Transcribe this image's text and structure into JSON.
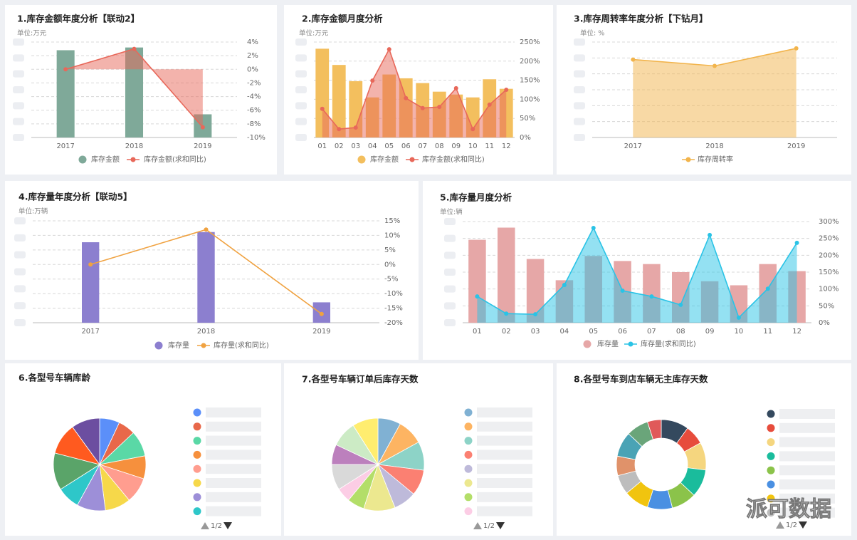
{
  "watermark": "派可数据",
  "chart_data": [
    {
      "type": "combo",
      "title": "1.库存金额年度分析【联动2】",
      "subtitle": "单位:万元",
      "categories": [
        "2017",
        "2018",
        "2019"
      ],
      "ylim": [
        0,
        7
      ],
      "y2lim": [
        -10,
        4
      ],
      "y2ticks": [
        {
          "value": 4,
          "label": "4%"
        },
        {
          "value": 2,
          "label": "2%"
        },
        {
          "value": 0,
          "label": "0%"
        },
        {
          "value": -2,
          "label": "-2%"
        },
        {
          "value": -4,
          "label": "-4%"
        },
        {
          "value": -6,
          "label": "-6%"
        },
        {
          "value": -8,
          "label": "-8%"
        },
        {
          "value": -10,
          "label": "-10%"
        }
      ],
      "series": [
        {
          "name": "库存金额",
          "type": "bar",
          "color": "#7fa999",
          "values": [
            6.4,
            6.6,
            1.7
          ]
        },
        {
          "name": "库存金额(求和同比)",
          "type": "line",
          "axis": "y2",
          "area": true,
          "color": "#e8685a",
          "values": [
            0,
            3,
            -8.5
          ]
        }
      ]
    },
    {
      "type": "combo",
      "title": "2.库存金额月度分析",
      "subtitle": "单位:万元",
      "categories": [
        "01",
        "02",
        "03",
        "04",
        "05",
        "06",
        "07",
        "08",
        "09",
        "10",
        "11",
        "12"
      ],
      "ylim": [
        0,
        10
      ],
      "y2lim": [
        0,
        250
      ],
      "y2ticks": [
        {
          "value": 250,
          "label": "250%"
        },
        {
          "value": 200,
          "label": "200%"
        },
        {
          "value": 150,
          "label": "150%"
        },
        {
          "value": 100,
          "label": "100%"
        },
        {
          "value": 50,
          "label": "50%"
        },
        {
          "value": 0,
          "label": "0%"
        }
      ],
      "series": [
        {
          "name": "库存金额",
          "type": "bar",
          "color": "#f3bf5e",
          "values": [
            9.3,
            7.6,
            5.9,
            4.2,
            6.6,
            6.2,
            5.7,
            4.8,
            4.5,
            4.2,
            6.1,
            5.1
          ]
        },
        {
          "name": "库存金额(求和同比)",
          "type": "line",
          "axis": "y2",
          "area": true,
          "color": "#e8685a",
          "values": [
            75,
            22,
            26,
            149,
            231,
            103,
            77,
            80,
            129,
            22,
            86,
            125
          ]
        }
      ]
    },
    {
      "type": "area",
      "title": "3.库存周转率年度分析【下钻月】",
      "subtitle": "单位: %",
      "categories": [
        "2017",
        "2018",
        "2019"
      ],
      "ylim": [
        0,
        12
      ],
      "yticks": [
        0,
        2,
        4,
        6,
        8,
        10,
        12
      ],
      "series": [
        {
          "name": "库存周转率",
          "type": "line",
          "area": true,
          "color": "#f2b44c",
          "values": [
            9.8,
            9.0,
            11.2
          ]
        }
      ]
    },
    {
      "type": "combo",
      "title": "4.库存量年度分析【联动5】",
      "subtitle": "单位:万辆",
      "categories": [
        "2017",
        "2018",
        "2019"
      ],
      "ylim": [
        0,
        10
      ],
      "y2lim": [
        -20,
        15
      ],
      "y2ticks": [
        {
          "value": 15,
          "label": "15%"
        },
        {
          "value": 10,
          "label": "10%"
        },
        {
          "value": 5,
          "label": "5%"
        },
        {
          "value": 0,
          "label": "0%"
        },
        {
          "value": -5,
          "label": "-5%"
        },
        {
          "value": -10,
          "label": "-10%"
        },
        {
          "value": -15,
          "label": "-15%"
        },
        {
          "value": -20,
          "label": "-20%"
        }
      ],
      "series": [
        {
          "name": "库存量",
          "type": "bar",
          "color": "#8c7fcf",
          "values": [
            7.9,
            8.9,
            2.0
          ]
        },
        {
          "name": "库存量(求和同比)",
          "type": "line",
          "axis": "y2",
          "color": "#f0a240",
          "values": [
            0,
            12,
            -17
          ]
        }
      ]
    },
    {
      "type": "combo",
      "title": "5.库存量月度分析",
      "subtitle": "单位:辆",
      "categories": [
        "01",
        "02",
        "03",
        "04",
        "05",
        "06",
        "07",
        "08",
        "09",
        "10",
        "11",
        "12"
      ],
      "ylim": [
        0,
        10
      ],
      "y2lim": [
        0,
        300
      ],
      "y2ticks": [
        {
          "value": 300,
          "label": "300%"
        },
        {
          "value": 250,
          "label": "250%"
        },
        {
          "value": 200,
          "label": "200%"
        },
        {
          "value": 150,
          "label": "150%"
        },
        {
          "value": 100,
          "label": "100%"
        },
        {
          "value": 50,
          "label": "50%"
        },
        {
          "value": 0,
          "label": "0%"
        }
      ],
      "series": [
        {
          "name": "库存量",
          "type": "bar",
          "color": "#e6a7a7",
          "values": [
            8.2,
            9.4,
            6.3,
            4.2,
            6.6,
            6.1,
            5.8,
            5.0,
            4.1,
            3.7,
            5.8,
            5.1
          ]
        },
        {
          "name": "库存量(求和同比)",
          "type": "line",
          "axis": "y2",
          "area": true,
          "color": "#2ac3e6",
          "values": [
            78,
            27,
            25,
            112,
            281,
            95,
            78,
            53,
            260,
            15,
            101,
            237
          ]
        }
      ]
    },
    {
      "type": "pie",
      "title": "6.各型号车辆库龄",
      "legend_page": "1/2",
      "categories": [
        null,
        null,
        null,
        null,
        null,
        null,
        null,
        null,
        null,
        null,
        null
      ],
      "values": [
        7,
        6,
        9,
        8,
        9,
        9,
        10,
        8,
        13,
        11,
        10
      ],
      "colors": [
        "#5b8ff9",
        "#e8684a",
        "#5ad8a6",
        "#f6903d",
        "#ff9d8f",
        "#f6d84a",
        "#9d8fd8",
        "#2ec7c9",
        "#5aa469",
        "#ff5a1f",
        "#6c4ea0"
      ]
    },
    {
      "type": "pie",
      "title": "7.各型号车辆订单后库存天数",
      "legend_page": "1/2",
      "categories": [
        null,
        null,
        null,
        null,
        null,
        null,
        null,
        null,
        null,
        null,
        null,
        null
      ],
      "values": [
        8,
        9,
        10,
        9,
        8,
        11,
        6,
        5,
        9,
        7,
        9,
        9
      ],
      "colors": [
        "#80b1d3",
        "#fdb462",
        "#8dd3c7",
        "#fb8072",
        "#bebada",
        "#ece88f",
        "#b3de69",
        "#fccde5",
        "#d9d9d9",
        "#bc80bd",
        "#ccebc5",
        "#ffed6f"
      ]
    },
    {
      "type": "donut",
      "title": "8.各型号车到店车辆无主库存天数",
      "legend_page": "1/2",
      "categories": [
        null,
        null,
        null,
        null,
        null,
        null,
        null,
        null,
        null,
        null,
        null,
        null
      ],
      "values": [
        10,
        7,
        10,
        10,
        9,
        9,
        9,
        7,
        7,
        9,
        8,
        5
      ],
      "colors": [
        "#34495e",
        "#e74c3c",
        "#f5d67f",
        "#1abc9c",
        "#8bc34a",
        "#4a90e2",
        "#f1c40f",
        "#bdbdbd",
        "#e0926a",
        "#4aa3b5",
        "#6aa57a",
        "#e05a5a"
      ]
    }
  ]
}
